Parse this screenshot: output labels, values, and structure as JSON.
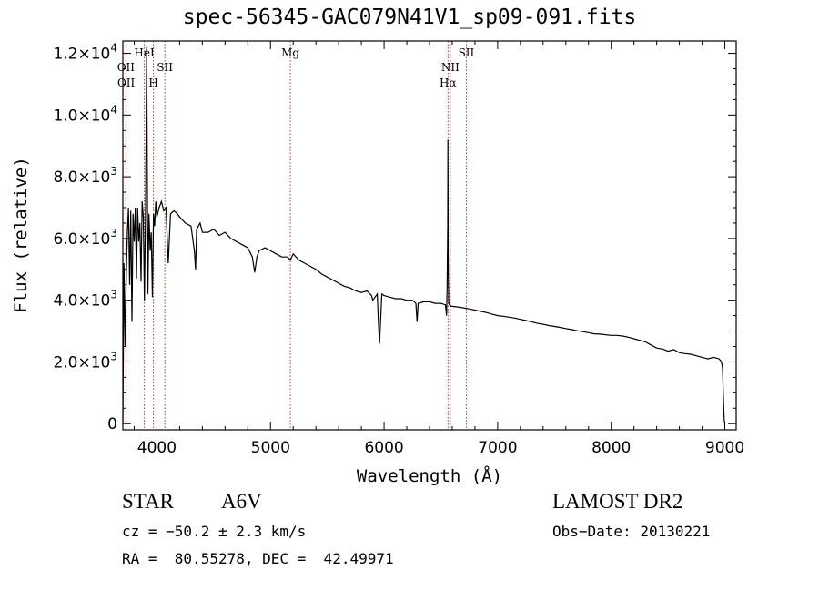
{
  "title": "spec-56345-GAC079N41V1_sp09-091.fits",
  "chart_data": {
    "type": "line",
    "title": "spec-56345-GAC079N41V1_sp09-091.fits",
    "xlabel": "Wavelength (Å)",
    "ylabel": "Flux (relative)",
    "xlim": [
      3700,
      9100
    ],
    "ylim": [
      -200,
      12400
    ],
    "xticks": [
      4000,
      5000,
      6000,
      7000,
      8000,
      9000
    ],
    "xtick_labels": [
      "4000",
      "5000",
      "6000",
      "7000",
      "8000",
      "9000"
    ],
    "yticks": [
      0,
      2000,
      4000,
      6000,
      8000,
      10000,
      12000
    ],
    "ytick_labels": [
      {
        "mant": "0",
        "exp": ""
      },
      {
        "mant": "2.0×10",
        "exp": "3"
      },
      {
        "mant": "4.0×10",
        "exp": "3"
      },
      {
        "mant": "6.0×10",
        "exp": "3"
      },
      {
        "mant": "8.0×10",
        "exp": "3"
      },
      {
        "mant": "1.0×10",
        "exp": "4"
      },
      {
        "mant": "1.2×10",
        "exp": "4"
      }
    ],
    "grid": false,
    "series": [
      {
        "x": [
          3700,
          3710,
          3720,
          3730,
          3740,
          3750,
          3760,
          3770,
          3780,
          3790,
          3800,
          3810,
          3820,
          3830,
          3840,
          3850,
          3860,
          3870,
          3880,
          3890,
          3900,
          3910,
          3920,
          3930,
          3940,
          3950,
          3960,
          3970,
          3980,
          3990,
          4000,
          4020,
          4040,
          4060,
          4080,
          4100,
          4120,
          4150,
          4180,
          4200,
          4250,
          4300,
          4330,
          4340,
          4350,
          4380,
          4400,
          4450,
          4500,
          4550,
          4600,
          4650,
          4700,
          4750,
          4800,
          4840,
          4861,
          4880,
          4900,
          4950,
          5000,
          5050,
          5100,
          5150,
          5175,
          5200,
          5250,
          5300,
          5350,
          5400,
          5450,
          5500,
          5550,
          5600,
          5650,
          5700,
          5750,
          5800,
          5850,
          5890,
          5900,
          5940,
          5950,
          5960,
          5980,
          6000,
          6050,
          6100,
          6150,
          6200,
          6250,
          6280,
          6290,
          6300,
          6350,
          6400,
          6450,
          6500,
          6540,
          6550,
          6555,
          6560,
          6562,
          6564,
          6566,
          6570,
          6575,
          6580,
          6590,
          6600,
          6650,
          6700,
          6750,
          6800,
          6850,
          6900,
          6950,
          7000,
          7050,
          7100,
          7150,
          7200,
          7250,
          7300,
          7350,
          7400,
          7450,
          7500,
          7550,
          7600,
          7650,
          7700,
          7750,
          7800,
          7850,
          7900,
          7950,
          8000,
          8050,
          8100,
          8150,
          8200,
          8250,
          8300,
          8350,
          8400,
          8450,
          8500,
          8550,
          8600,
          8650,
          8700,
          8750,
          8800,
          8850,
          8900,
          8950,
          8970,
          8980,
          8985,
          8990,
          8995,
          9000
        ],
        "y": [
          0,
          5200,
          2500,
          4700,
          6200,
          7000,
          4500,
          6900,
          3300,
          6800,
          5900,
          7000,
          4700,
          7000,
          5900,
          6500,
          4600,
          7200,
          6700,
          4000,
          7100,
          12200,
          4200,
          6800,
          5600,
          6200,
          4100,
          6800,
          6400,
          7200,
          6700,
          7000,
          7200,
          6900,
          7000,
          5200,
          6800,
          6900,
          6800,
          6700,
          6500,
          6400,
          5600,
          5000,
          6300,
          6500,
          6200,
          6200,
          6300,
          6100,
          6200,
          6000,
          5900,
          5800,
          5700,
          5400,
          4900,
          5400,
          5600,
          5700,
          5600,
          5500,
          5400,
          5400,
          5300,
          5500,
          5300,
          5200,
          5100,
          5000,
          4850,
          4750,
          4650,
          4550,
          4450,
          4400,
          4300,
          4250,
          4300,
          4150,
          4000,
          4200,
          3300,
          2600,
          4200,
          4150,
          4100,
          4050,
          4050,
          4000,
          4000,
          3900,
          3300,
          3900,
          3950,
          3950,
          3900,
          3900,
          3850,
          3500,
          4400,
          6400,
          9200,
          5400,
          4800,
          3900,
          3850,
          3850,
          3800,
          3800,
          3780,
          3750,
          3720,
          3680,
          3640,
          3600,
          3550,
          3500,
          3480,
          3450,
          3420,
          3380,
          3340,
          3300,
          3250,
          3220,
          3180,
          3150,
          3120,
          3080,
          3050,
          3010,
          2980,
          2950,
          2910,
          2900,
          2880,
          2860,
          2860,
          2840,
          2800,
          2750,
          2700,
          2650,
          2550,
          2450,
          2420,
          2350,
          2400,
          2300,
          2270,
          2250,
          2200,
          2150,
          2100,
          2150,
          2100,
          2000,
          1800,
          1200,
          500,
          100,
          0
        ]
      }
    ],
    "lines": [
      {
        "label": "OII",
        "x": 3727,
        "row": 2
      },
      {
        "label": "OII",
        "x": 3729,
        "row": 3
      },
      {
        "label": "HeI",
        "x": 3889,
        "row": 1
      },
      {
        "label": "H",
        "x": 3969,
        "row": 3
      },
      {
        "label": "SII",
        "x": 4070,
        "row": 2
      },
      {
        "label": "Mg",
        "x": 5175,
        "row": 1
      },
      {
        "label": "NII",
        "x": 6583,
        "row": 2
      },
      {
        "label": "Hα",
        "x": 6563,
        "row": 3
      },
      {
        "label": "SII",
        "x": 6724,
        "row": 1
      }
    ]
  },
  "info": {
    "object_class": "STAR",
    "subclass": "A6V",
    "survey": "LAMOST DR2",
    "redshift": "cz = −50.2 ± 2.3 km/s",
    "obs_date": "Obs−Date: 20130221",
    "coords": "RA =  80.55278, DEC =  42.49971"
  },
  "colors": {
    "axis": "#000000",
    "spectrum": "#000000",
    "marker_line": "#c0392b"
  }
}
